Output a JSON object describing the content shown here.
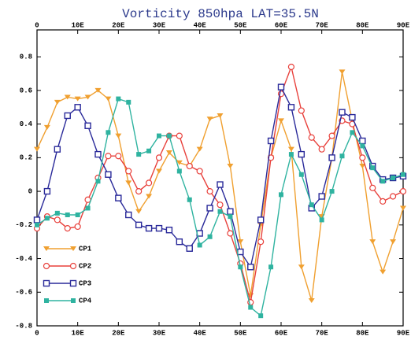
{
  "chart_data": {
    "type": "line",
    "title": "Vorticity 850hpa LAT=35.5N",
    "x": [
      0,
      2.5,
      5,
      7.5,
      10,
      12.5,
      15,
      17.5,
      20,
      22.5,
      25,
      27.5,
      30,
      32.5,
      35,
      37.5,
      40,
      42.5,
      45,
      47.5,
      50,
      52.5,
      55,
      57.5,
      60,
      62.5,
      65,
      67.5,
      70,
      72.5,
      75,
      77.5,
      80,
      82.5,
      85,
      87.5,
      90
    ],
    "xlim": [
      0,
      90
    ],
    "xticks": [
      0,
      {
        "value": 10,
        "label": "10E"
      },
      {
        "value": 20,
        "label": "20E"
      },
      {
        "value": 30,
        "label": "30E"
      },
      {
        "value": 40,
        "label": "40E"
      },
      {
        "value": 50,
        "label": "50E"
      },
      {
        "value": 60,
        "label": "60E"
      },
      {
        "value": 70,
        "label": "70E"
      },
      {
        "value": 80,
        "label": "80E"
      },
      {
        "value": 90,
        "label": "90E"
      }
    ],
    "ylim": [
      -0.8,
      0.96
    ],
    "yticks": [
      -0.8,
      -0.6,
      -0.4,
      -0.2,
      0,
      0.2,
      0.4,
      0.6,
      0.8
    ],
    "legend": "lower left",
    "series": [
      {
        "name": "CP1",
        "color": "#f0a030",
        "marker": "triangle",
        "values": [
          0.25,
          0.38,
          0.53,
          0.56,
          0.55,
          0.56,
          0.6,
          0.55,
          0.33,
          0.05,
          -0.12,
          -0.03,
          0.12,
          0.23,
          0.17,
          0.15,
          0.25,
          0.43,
          0.45,
          0.15,
          -0.3,
          -0.62,
          -0.2,
          0.2,
          0.42,
          0.25,
          -0.45,
          -0.65,
          -0.15,
          0.2,
          0.71,
          0.42,
          0.15,
          -0.3,
          -0.48,
          -0.3,
          -0.1
        ]
      },
      {
        "name": "CP2",
        "color": "#e8413c",
        "marker": "circle",
        "values": [
          -0.22,
          -0.15,
          -0.17,
          -0.22,
          -0.21,
          -0.05,
          0.08,
          0.21,
          0.21,
          0.12,
          0.0,
          0.05,
          0.2,
          0.33,
          0.33,
          0.15,
          0.12,
          0.0,
          -0.08,
          -0.25,
          -0.43,
          -0.66,
          -0.3,
          0.2,
          0.58,
          0.74,
          0.48,
          0.32,
          0.25,
          0.33,
          0.42,
          0.4,
          0.2,
          0.02,
          -0.06,
          -0.03,
          0.0
        ]
      },
      {
        "name": "CP3",
        "color": "#2a2a9a",
        "marker": "square",
        "values": [
          -0.17,
          0.0,
          0.25,
          0.45,
          0.5,
          0.39,
          0.22,
          0.1,
          -0.04,
          -0.14,
          -0.2,
          -0.22,
          -0.22,
          -0.23,
          -0.3,
          -0.34,
          -0.25,
          -0.1,
          0.04,
          -0.12,
          -0.36,
          -0.45,
          -0.17,
          0.3,
          0.62,
          0.5,
          0.22,
          -0.1,
          -0.03,
          0.2,
          0.47,
          0.44,
          0.3,
          0.15,
          0.07,
          0.08,
          0.09
        ]
      },
      {
        "name": "CP4",
        "color": "#2fb3a0",
        "marker": "filled-square",
        "values": [
          -0.2,
          -0.16,
          -0.13,
          -0.14,
          -0.14,
          -0.1,
          0.06,
          0.35,
          0.55,
          0.53,
          0.22,
          0.24,
          0.33,
          0.33,
          0.12,
          -0.05,
          -0.32,
          -0.27,
          -0.12,
          -0.15,
          -0.45,
          -0.69,
          -0.74,
          -0.45,
          -0.02,
          0.22,
          0.1,
          -0.08,
          -0.17,
          0.0,
          0.21,
          0.35,
          0.27,
          0.14,
          0.06,
          0.08,
          0.1
        ]
      }
    ]
  }
}
